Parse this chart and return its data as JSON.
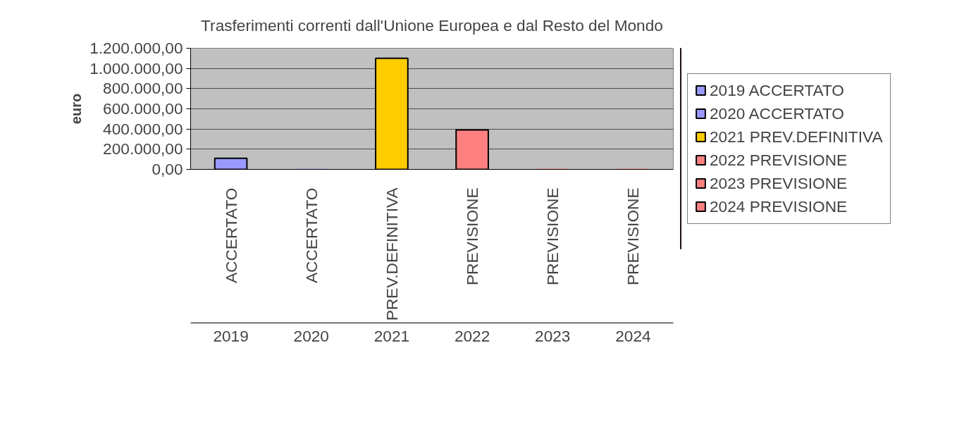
{
  "chart_data": {
    "type": "bar",
    "title": "Trasferimenti correnti dall'Unione Europea e dal Resto del Mondo",
    "ylabel": "euro",
    "categories": [
      "ACCERTATO",
      "ACCERTATO",
      "PREV.DEFINITIVA",
      "PREVISIONE",
      "PREVISIONE",
      "PREVISIONE"
    ],
    "annotations": [
      "2019",
      "2020",
      "2021",
      "2022",
      "2023",
      "2024"
    ],
    "series": [
      {
        "name": "2019 ACCERTATO",
        "color": "#9999ff",
        "values": [
          110000,
          null,
          null,
          null,
          null,
          null
        ]
      },
      {
        "name": "2020 ACCERTATO",
        "color": "#9999ff",
        "values": [
          null,
          0,
          null,
          null,
          null,
          null
        ]
      },
      {
        "name": "2021 PREV.DEFINITIVA",
        "color": "#ffcc00",
        "values": [
          null,
          null,
          1100000,
          null,
          null,
          null
        ]
      },
      {
        "name": "2022 PREVISIONE",
        "color": "#ff8080",
        "values": [
          null,
          null,
          null,
          390000,
          null,
          null
        ]
      },
      {
        "name": "2023 PREVISIONE",
        "color": "#ff8080",
        "values": [
          null,
          null,
          null,
          null,
          0,
          null
        ]
      },
      {
        "name": "2024 PREVISIONE",
        "color": "#ff8080",
        "values": [
          null,
          null,
          null,
          null,
          null,
          0
        ]
      }
    ],
    "ylim": [
      0,
      1200000
    ],
    "yticks": [
      {
        "value": 0,
        "label": "0,00"
      },
      {
        "value": 200000,
        "label": "200.000,00"
      },
      {
        "value": 400000,
        "label": "400.000,00"
      },
      {
        "value": 600000,
        "label": "600.000,00"
      },
      {
        "value": 800000,
        "label": "800.000,00"
      },
      {
        "value": 1000000,
        "label": "1.000.000,00"
      },
      {
        "value": 1200000,
        "label": "1.200.000,00"
      }
    ],
    "grid": "y",
    "legend": "right"
  }
}
